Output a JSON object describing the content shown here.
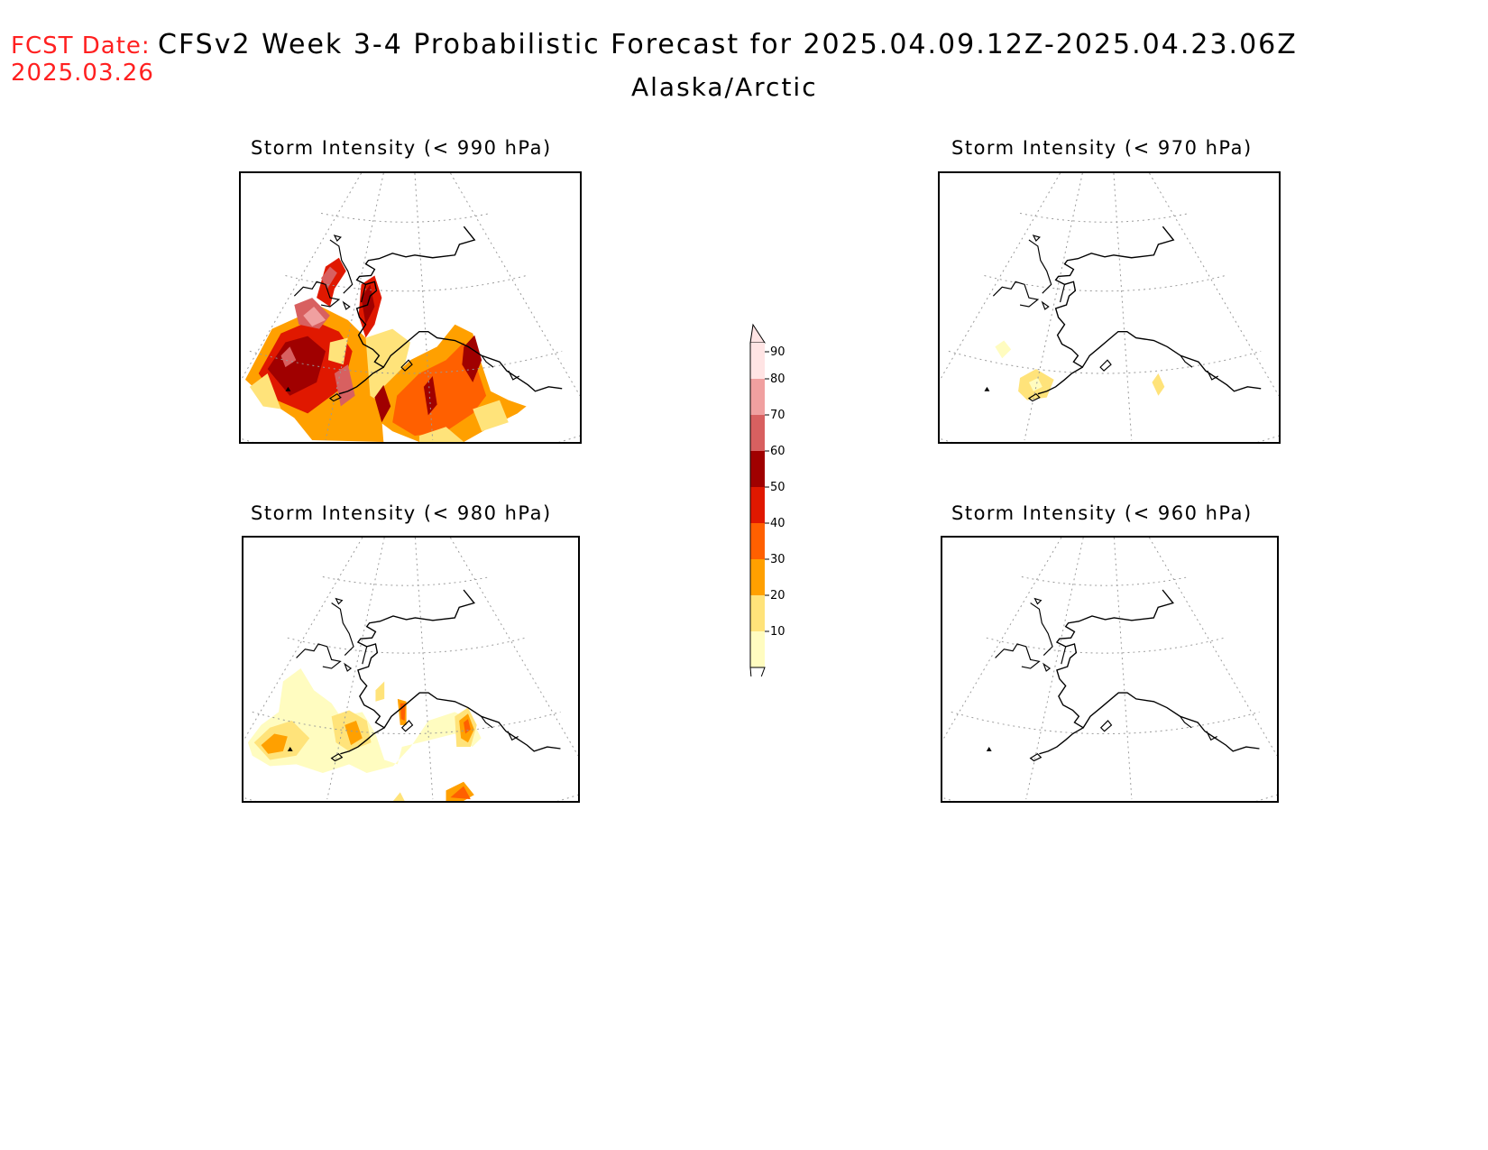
{
  "header": {
    "fcst_label": "FCST Date:",
    "fcst_date": "2025.03.26",
    "title": "CFSv2 Week 3-4 Probabilistic Forecast for 2025.04.09.12Z-2025.04.23.06Z",
    "region": "Alaska/Arctic"
  },
  "panels": [
    {
      "title": "Storm Intensity (< 990 hPa)"
    },
    {
      "title": "Storm Intensity (< 970 hPa)"
    },
    {
      "title": "Storm Intensity (< 980 hPa)"
    },
    {
      "title": "Storm Intensity (< 960 hPa)"
    }
  ],
  "colorbar": {
    "levels": [
      "10",
      "20",
      "30",
      "40",
      "50",
      "60",
      "70",
      "80",
      "90"
    ],
    "colors": [
      "#fffcc0",
      "#ffe37a",
      "#ffa000",
      "#ff6000",
      "#e01800",
      "#a00000",
      "#d86060",
      "#f0a0a0",
      "#ffe4e4"
    ]
  },
  "colors": {
    "fcst_label": "#ff2020"
  }
}
